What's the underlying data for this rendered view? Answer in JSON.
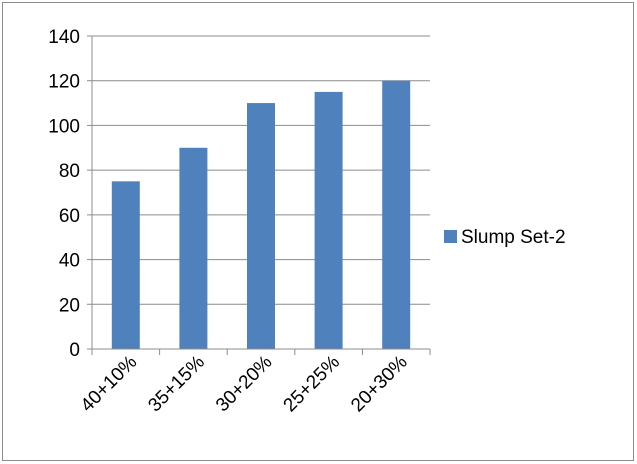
{
  "chart_data": {
    "type": "bar",
    "title": "",
    "xlabel": "",
    "ylabel": "",
    "categories": [
      "40+10%",
      "35+15%",
      "30+20%",
      "25+25%",
      "20+30%"
    ],
    "series": [
      {
        "name": "Slump Set-2",
        "values": [
          75,
          90,
          110,
          115,
          120
        ],
        "color": "#4f81bd"
      }
    ],
    "ylim": [
      0,
      140
    ],
    "yticks": [
      0,
      20,
      40,
      60,
      80,
      100,
      120,
      140
    ],
    "grid": true,
    "legend_position": "right"
  }
}
